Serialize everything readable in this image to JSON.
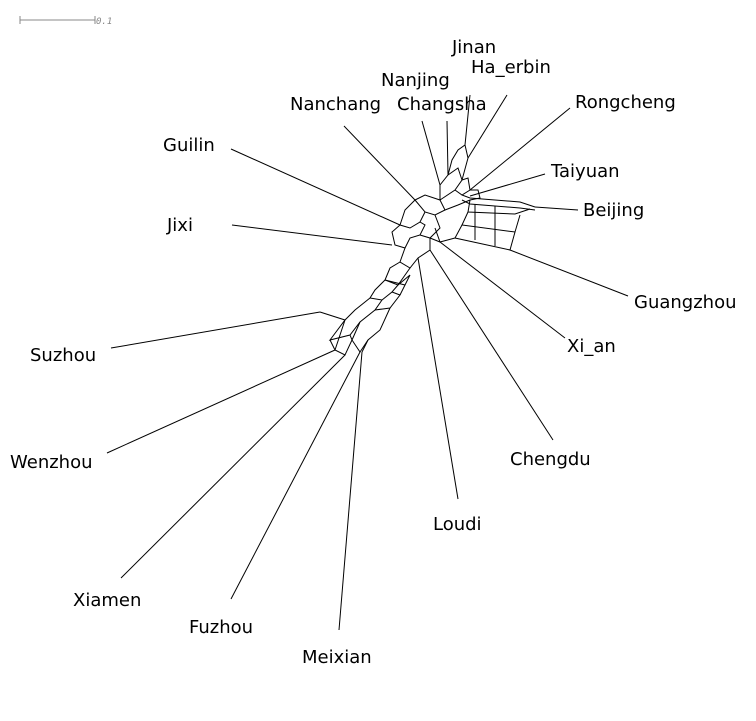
{
  "scale_bar": {
    "label": "0.1"
  },
  "taxa": [
    {
      "id": "jinan",
      "label": "Jinan"
    },
    {
      "id": "ha-erbin",
      "label": "Ha_erbin"
    },
    {
      "id": "nanjing",
      "label": "Nanjing"
    },
    {
      "id": "changsha",
      "label": "Changsha"
    },
    {
      "id": "nanchang",
      "label": "Nanchang"
    },
    {
      "id": "rongcheng",
      "label": "Rongcheng"
    },
    {
      "id": "guilin",
      "label": "Guilin"
    },
    {
      "id": "taiyuan",
      "label": "Taiyuan"
    },
    {
      "id": "beijing",
      "label": "Beijing"
    },
    {
      "id": "jixi",
      "label": "Jixi"
    },
    {
      "id": "guangzhou",
      "label": "Guangzhou"
    },
    {
      "id": "xi-an",
      "label": "Xi_an"
    },
    {
      "id": "suzhou",
      "label": "Suzhou"
    },
    {
      "id": "chengdu",
      "label": "Chengdu"
    },
    {
      "id": "wenzhou",
      "label": "Wenzhou"
    },
    {
      "id": "loudi",
      "label": "Loudi"
    },
    {
      "id": "xiamen",
      "label": "Xiamen"
    },
    {
      "id": "fuzhou",
      "label": "Fuzhou"
    },
    {
      "id": "meixian",
      "label": "Meixian"
    }
  ]
}
